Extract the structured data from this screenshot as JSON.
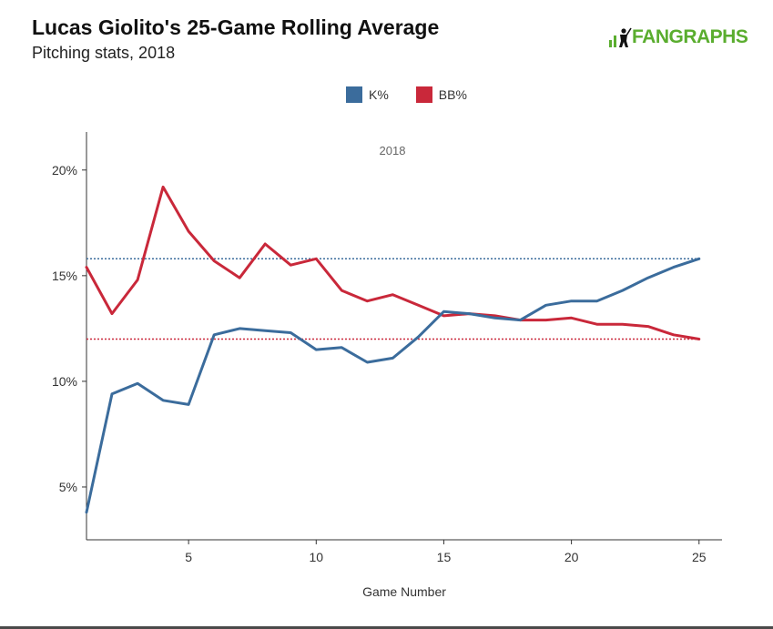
{
  "header": {
    "title": "Lucas Giolito's 25-Game Rolling Average",
    "subtitle": "Pitching stats, 2018",
    "logo_text": "FANGRAPHS"
  },
  "legend": [
    {
      "label": "K%",
      "color": "#3b6c9c"
    },
    {
      "label": "BB%",
      "color": "#c9283a"
    }
  ],
  "chart_data": {
    "type": "line",
    "annotation": "2018",
    "xlabel": "Game Number",
    "ylabel": "",
    "xlim": [
      1,
      25.9
    ],
    "ylim": [
      2.5,
      21.8
    ],
    "x_ticks": [
      5,
      10,
      15,
      20,
      25
    ],
    "y_ticks": [
      5,
      10,
      15,
      20
    ],
    "y_tick_labels": [
      "5%",
      "10%",
      "15%",
      "20%"
    ],
    "grid": false,
    "legend_position": "top-center",
    "x": [
      1,
      2,
      3,
      4,
      5,
      6,
      7,
      8,
      9,
      10,
      11,
      12,
      13,
      14,
      15,
      16,
      17,
      18,
      19,
      20,
      21,
      22,
      23,
      24,
      25
    ],
    "series": [
      {
        "name": "K%",
        "color": "#3b6c9c",
        "values": [
          3.8,
          9.4,
          9.9,
          9.1,
          8.9,
          12.2,
          12.5,
          12.4,
          12.3,
          11.5,
          11.6,
          10.9,
          11.1,
          12.1,
          13.3,
          13.2,
          13.0,
          12.9,
          13.6,
          13.8,
          13.8,
          14.3,
          14.9,
          15.4,
          15.8
        ],
        "reference_line": 15.8
      },
      {
        "name": "BB%",
        "color": "#c9283a",
        "values": [
          15.4,
          13.2,
          14.8,
          19.2,
          17.1,
          15.7,
          14.9,
          16.5,
          15.5,
          15.8,
          14.3,
          13.8,
          14.1,
          13.6,
          13.1,
          13.2,
          13.1,
          12.9,
          12.9,
          13.0,
          12.7,
          12.7,
          12.6,
          12.2,
          12.0
        ],
        "reference_line": 12.0
      }
    ]
  }
}
